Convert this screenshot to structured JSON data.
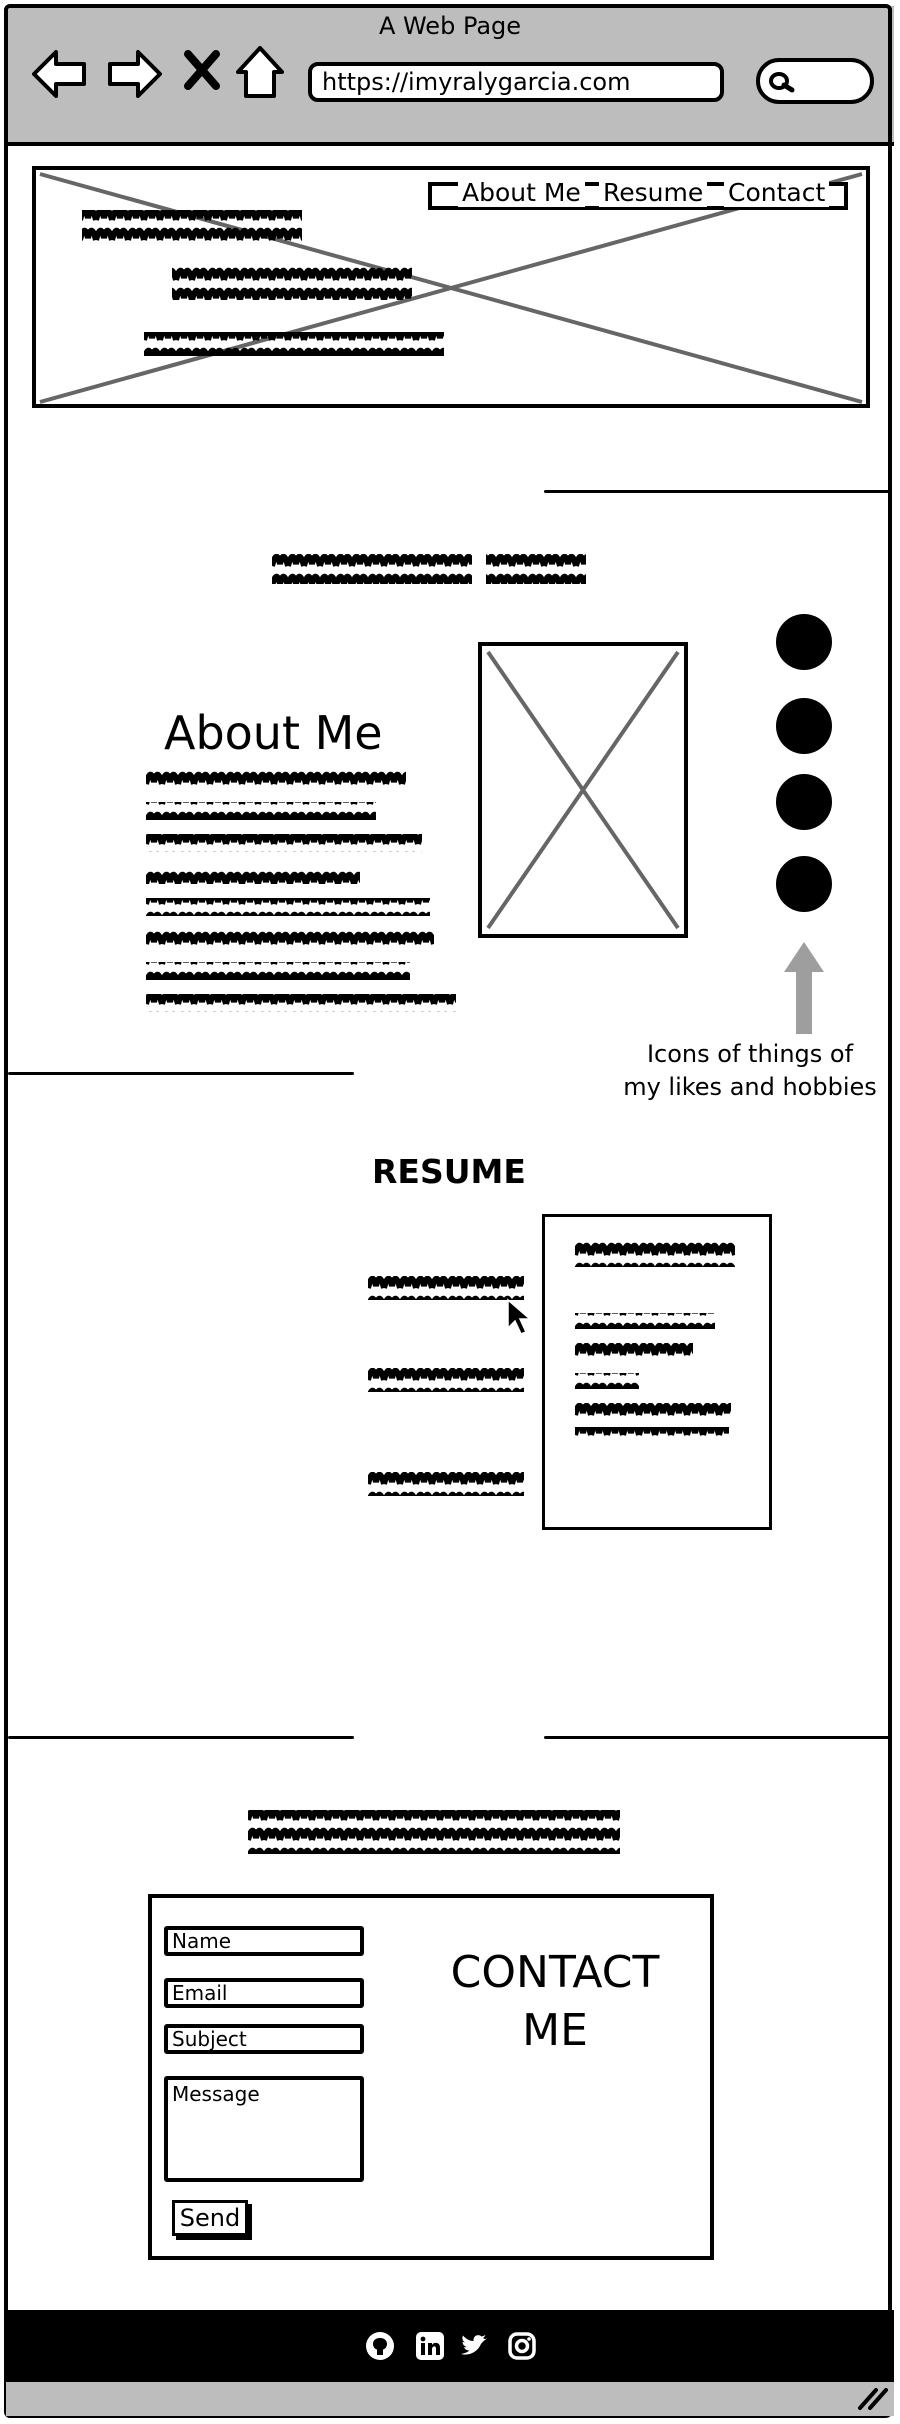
{
  "browser": {
    "window_title": "A Web Page",
    "url": "https://imyralygarcia.com"
  },
  "header": {
    "nav": [
      "About Me",
      "Resume",
      "Contact"
    ]
  },
  "about": {
    "heading": "About Me",
    "hobbies_caption_line1": "Icons of things of",
    "hobbies_caption_line2": "my likes and hobbies",
    "hobby_icon_count": 4
  },
  "resume": {
    "heading": "RESUME"
  },
  "contact": {
    "heading_line1": "CONTACT",
    "heading_line2": "ME",
    "fields": {
      "name": "Name",
      "email": "Email",
      "subject": "Subject",
      "message": "Message"
    },
    "send_label": "Send"
  },
  "footer": {
    "social_icons": [
      "github-icon",
      "linkedin-icon",
      "twitter-icon",
      "instagram-icon"
    ]
  },
  "colors": {
    "chrome": "#bdbdbd",
    "ink": "#000000",
    "placeholder_line": "#666666",
    "arrow": "#9e9e9e"
  }
}
